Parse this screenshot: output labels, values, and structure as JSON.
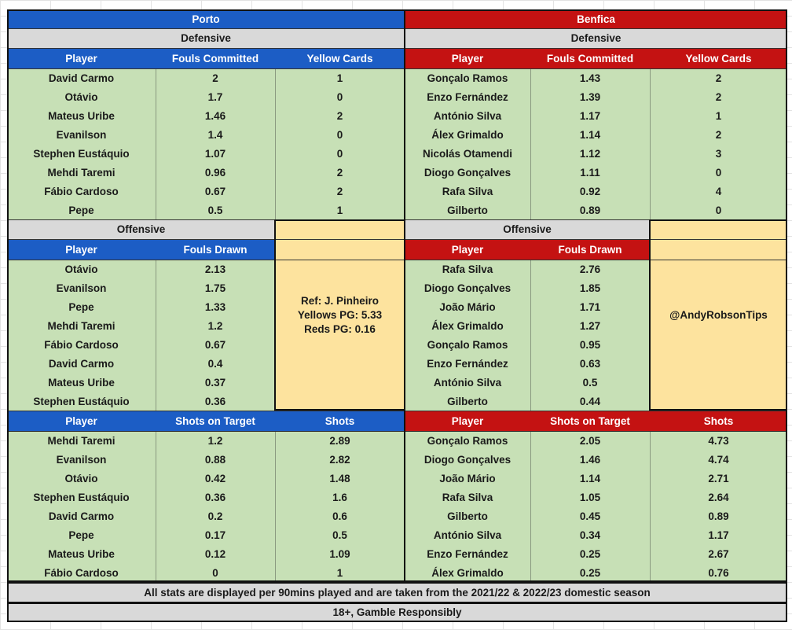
{
  "porto": {
    "team": "Porto",
    "defensive_label": "Defensive",
    "def_headers": [
      "Player",
      "Fouls Committed",
      "Yellow Cards"
    ],
    "def_rows": [
      [
        "David Carmo",
        "2",
        "1"
      ],
      [
        "Otávio",
        "1.7",
        "0"
      ],
      [
        "Mateus Uribe",
        "1.46",
        "2"
      ],
      [
        "Evanilson",
        "1.4",
        "0"
      ],
      [
        "Stephen Eustáquio",
        "1.07",
        "0"
      ],
      [
        "Mehdi Taremi",
        "0.96",
        "2"
      ],
      [
        "Fábio Cardoso",
        "0.67",
        "2"
      ],
      [
        "Pepe",
        "0.5",
        "1"
      ]
    ],
    "offensive_label": "Offensive",
    "off_headers": [
      "Player",
      "Fouls Drawn"
    ],
    "off_rows": [
      [
        "Otávio",
        "2.13"
      ],
      [
        "Evanilson",
        "1.75"
      ],
      [
        "Pepe",
        "1.33"
      ],
      [
        "Mehdi Taremi",
        "1.2"
      ],
      [
        "Fábio Cardoso",
        "0.67"
      ],
      [
        "David Carmo",
        "0.4"
      ],
      [
        "Mateus Uribe",
        "0.37"
      ],
      [
        "Stephen Eustáquio",
        "0.36"
      ]
    ],
    "ref_lines": [
      "Ref: J. Pinheiro",
      "Yellows PG: 5.33",
      "Reds PG: 0.16"
    ],
    "shot_headers": [
      "Player",
      "Shots on Target",
      "Shots"
    ],
    "shot_rows": [
      [
        "Mehdi Taremi",
        "1.2",
        "2.89"
      ],
      [
        "Evanilson",
        "0.88",
        "2.82"
      ],
      [
        "Otávio",
        "0.42",
        "1.48"
      ],
      [
        "Stephen Eustáquio",
        "0.36",
        "1.6"
      ],
      [
        "David Carmo",
        "0.2",
        "0.6"
      ],
      [
        "Pepe",
        "0.17",
        "0.5"
      ],
      [
        "Mateus Uribe",
        "0.12",
        "1.09"
      ],
      [
        "Fábio Cardoso",
        "0",
        "1"
      ]
    ]
  },
  "benfica": {
    "team": "Benfica",
    "defensive_label": "Defensive",
    "def_headers": [
      "Player",
      "Fouls Committed",
      "Yellow Cards"
    ],
    "def_rows": [
      [
        "Gonçalo Ramos",
        "1.43",
        "2"
      ],
      [
        "Enzo Fernández",
        "1.39",
        "2"
      ],
      [
        "António Silva",
        "1.17",
        "1"
      ],
      [
        "Álex Grimaldo",
        "1.14",
        "2"
      ],
      [
        "Nicolás Otamendi",
        "1.12",
        "3"
      ],
      [
        "Diogo Gonçalves",
        "1.11",
        "0"
      ],
      [
        "Rafa Silva",
        "0.92",
        "4"
      ],
      [
        "Gilberto",
        "0.89",
        "0"
      ]
    ],
    "offensive_label": "Offensive",
    "off_headers": [
      "Player",
      "Fouls Drawn"
    ],
    "off_rows": [
      [
        "Rafa Silva",
        "2.76"
      ],
      [
        "Diogo Gonçalves",
        "1.85"
      ],
      [
        "João Mário",
        "1.71"
      ],
      [
        "Álex Grimaldo",
        "1.27"
      ],
      [
        "Gonçalo Ramos",
        "0.95"
      ],
      [
        "Enzo Fernández",
        "0.63"
      ],
      [
        "António Silva",
        "0.5"
      ],
      [
        "Gilberto",
        "0.44"
      ]
    ],
    "handle": "@AndyRobsonTips",
    "shot_headers": [
      "Player",
      "Shots on Target",
      "Shots"
    ],
    "shot_rows": [
      [
        "Gonçalo Ramos",
        "2.05",
        "4.73"
      ],
      [
        "Diogo Gonçalves",
        "1.46",
        "4.74"
      ],
      [
        "João Mário",
        "1.14",
        "2.71"
      ],
      [
        "Rafa Silva",
        "1.05",
        "2.64"
      ],
      [
        "Gilberto",
        "0.45",
        "0.89"
      ],
      [
        "António Silva",
        "0.34",
        "1.17"
      ],
      [
        "Enzo Fernández",
        "0.25",
        "2.67"
      ],
      [
        "Álex Grimaldo",
        "0.25",
        "0.76"
      ]
    ]
  },
  "footer": {
    "note": "All stats are displayed per 90mins played and are taken from the 2021/22 & 2022/23 domestic season",
    "disclaimer": "18+, Gamble Responsibly"
  },
  "colors": {
    "porto_blue": "#1c5dc5",
    "benfica_red": "#c41212",
    "row_green": "#c7e0b6",
    "label_grey": "#d9d9d9",
    "note_yellow": "#fde39e"
  }
}
